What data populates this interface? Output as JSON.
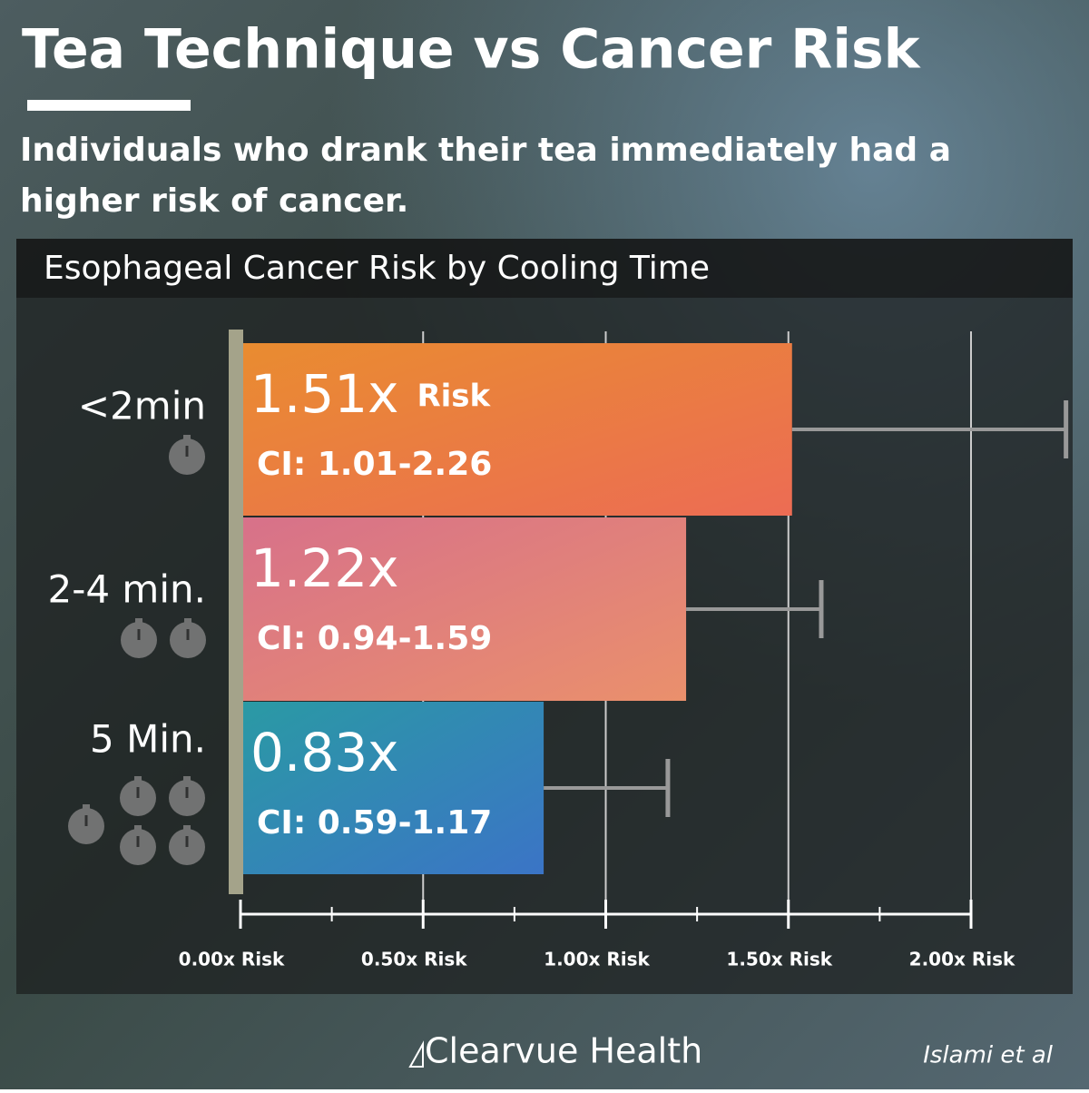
{
  "title": "Tea Technique vs Cancer Risk",
  "subtitle": "Individuals who drank their tea immediately had a higher risk of cancer.",
  "chart_data": {
    "type": "bar",
    "orientation": "horizontal",
    "title": "Esophageal Cancer Risk by Cooling Time",
    "categories": [
      "<2min",
      "2-4 min.",
      "5 Min."
    ],
    "values": [
      1.51,
      1.22,
      0.83
    ],
    "value_labels": [
      "1.51x",
      "1.22x",
      "0.83x"
    ],
    "annotation": "Risk",
    "ci_upper": [
      2.26,
      1.59,
      1.17
    ],
    "ci_labels": [
      "CI: 1.01-2.26",
      "CI: 0.94-1.59",
      "CI: 0.59-1.17"
    ],
    "colors": [
      [
        "#e98c30",
        "#ec6c54"
      ],
      [
        "#d7718a",
        "#ea906c"
      ],
      [
        "#2a9aa4",
        "#3b74c6"
      ]
    ],
    "xlim": [
      0,
      2
    ],
    "xticks": [
      {
        "value": 0,
        "label": "0.00x Risk"
      },
      {
        "value": 0.5,
        "label": "0.50x Risk"
      },
      {
        "value": 1,
        "label": "1.00x Risk"
      },
      {
        "value": 1.5,
        "label": "1.50x Risk"
      },
      {
        "value": 2,
        "label": "2.00x Risk"
      }
    ],
    "minor_xticks": [
      0.25,
      0.75,
      1.25,
      1.75
    ],
    "grid": true
  },
  "footer": {
    "brand": "Clearvue Health",
    "source": "Islami et al"
  }
}
